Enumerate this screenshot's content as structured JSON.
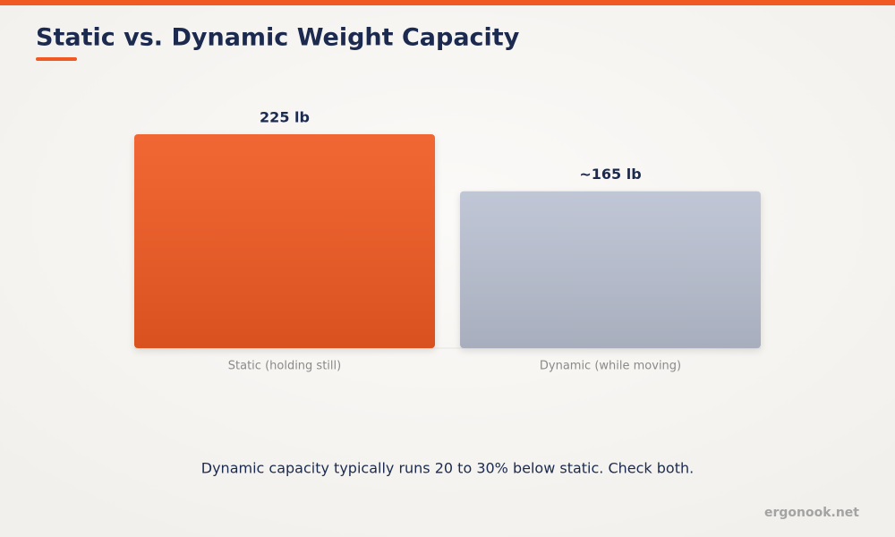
{
  "chart_data": {
    "type": "bar",
    "title": "Static vs. Dynamic Weight Capacity",
    "categories": [
      "Static (holding still)",
      "Dynamic (while moving)"
    ],
    "values": [
      225,
      165
    ],
    "value_labels": [
      "225 lb",
      "~165 lb"
    ],
    "colors": [
      "#f05a22",
      "#bac1d1"
    ],
    "note": "Dynamic capacity typically runs 20 to 30% below static. Check both.",
    "source": "ergonook.net"
  }
}
